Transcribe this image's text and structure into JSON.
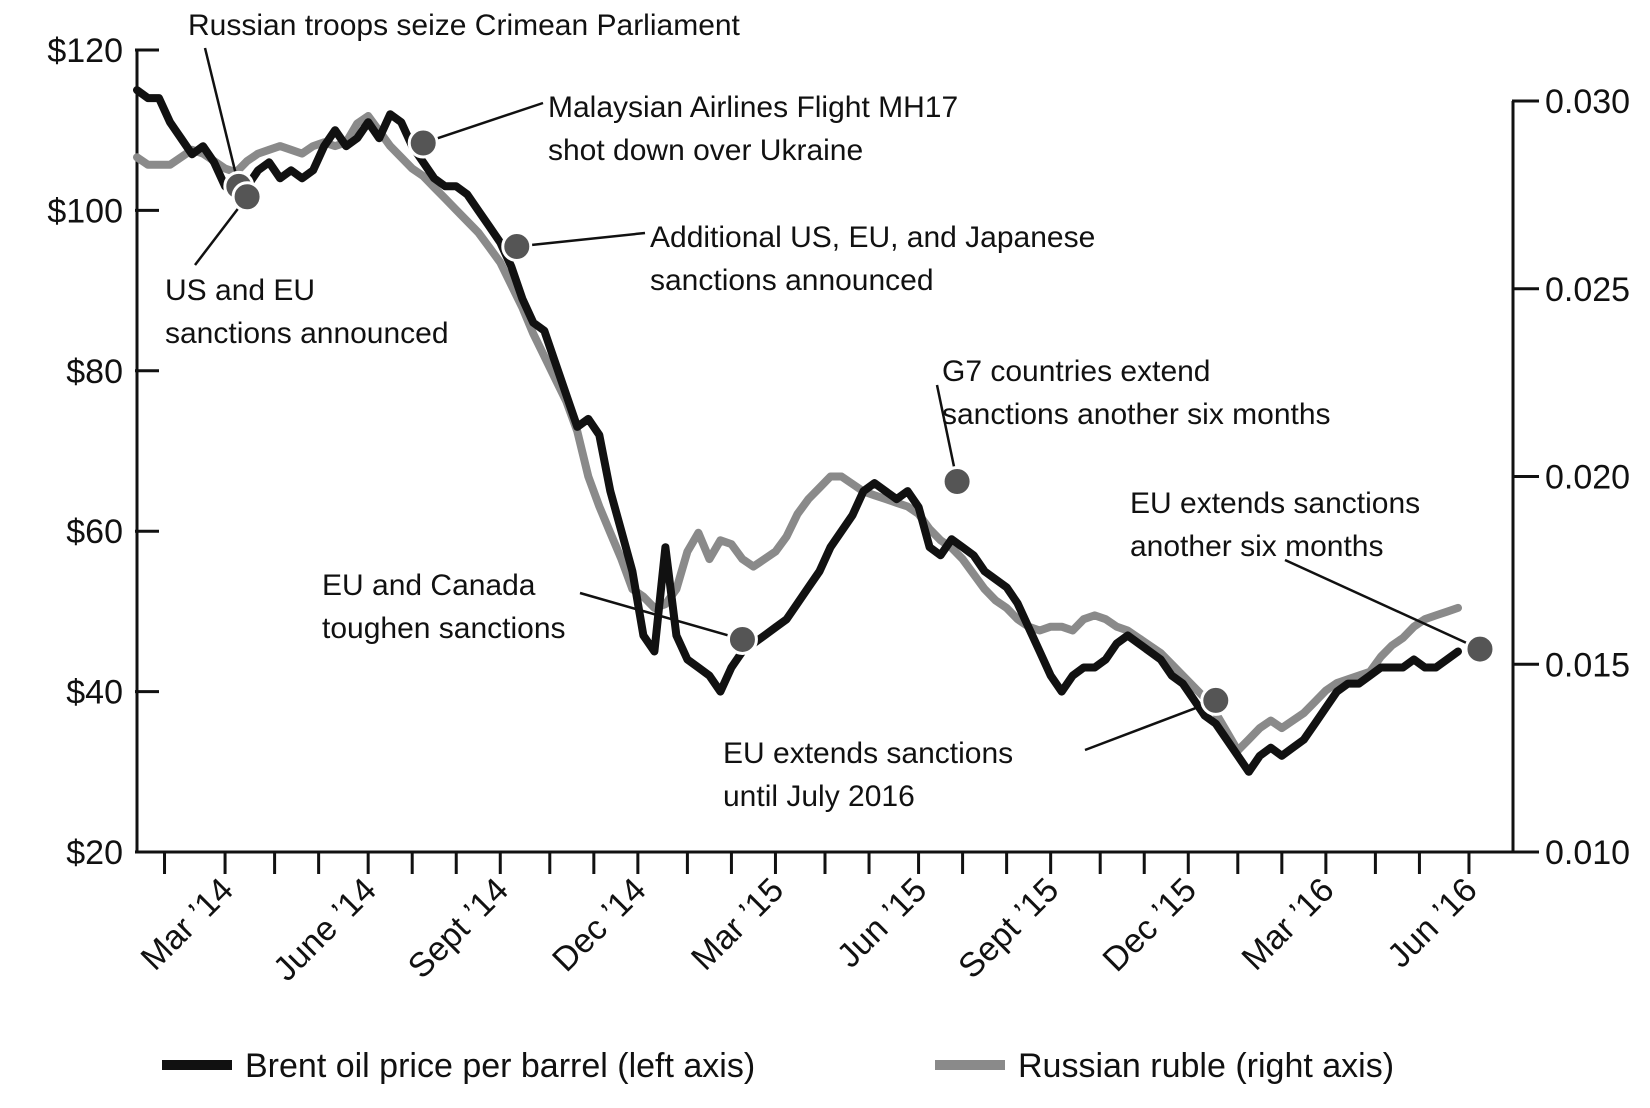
{
  "chart_data": {
    "type": "line",
    "title": "",
    "xlabel": "",
    "ylabel_left": "Brent oil price per barrel",
    "ylabel_right": "Russian ruble",
    "x_range": [
      2014.0,
      2016.5
    ],
    "ylim_left": [
      20,
      120
    ],
    "ylim_right": [
      0.01,
      0.031
    ],
    "left_ticks": [
      {
        "value": 120,
        "label": "$120"
      },
      {
        "value": 100,
        "label": "$100"
      },
      {
        "value": 80,
        "label": "$80"
      },
      {
        "value": 60,
        "label": "$60"
      },
      {
        "value": 40,
        "label": "$40"
      },
      {
        "value": 20,
        "label": "$20"
      }
    ],
    "right_ticks": [
      {
        "value": 0.03,
        "label": "0.030"
      },
      {
        "value": 0.025,
        "label": "0.025"
      },
      {
        "value": 0.02,
        "label": "0.020"
      },
      {
        "value": 0.015,
        "label": "0.015"
      },
      {
        "value": 0.01,
        "label": "0.010"
      }
    ],
    "x_minor_ticks": [
      2014.05,
      2014.16,
      2014.25,
      2014.33,
      2014.42,
      2014.5,
      2014.58,
      2014.66,
      2014.75,
      2014.83,
      2014.91,
      2015.0,
      2015.08,
      2015.16,
      2015.25,
      2015.33,
      2015.42,
      2015.5,
      2015.58,
      2015.66,
      2015.75,
      2015.83,
      2015.91,
      2016.0,
      2016.08,
      2016.16,
      2016.25,
      2016.33,
      2016.42
    ],
    "x_labels": [
      {
        "value": 2014.16,
        "label": "Mar ’14"
      },
      {
        "value": 2014.42,
        "label": "June ’14"
      },
      {
        "value": 2014.66,
        "label": "Sept ’14"
      },
      {
        "value": 2014.91,
        "label": "Dec ’14"
      },
      {
        "value": 2015.16,
        "label": "Mar ’15"
      },
      {
        "value": 2015.42,
        "label": "Jun ’15"
      },
      {
        "value": 2015.66,
        "label": "Sept ’15"
      },
      {
        "value": 2015.91,
        "label": "Dec ’15"
      },
      {
        "value": 2016.16,
        "label": "Mar ’16"
      },
      {
        "value": 2016.42,
        "label": "Jun ’16"
      }
    ],
    "series": [
      {
        "name": "Brent oil price per barrel (left axis)",
        "axis": "left",
        "color": "#111111",
        "x": [
          2014.0,
          2014.02,
          2014.04,
          2014.06,
          2014.08,
          2014.1,
          2014.12,
          2014.14,
          2014.16,
          2014.18,
          2014.2,
          2014.22,
          2014.24,
          2014.26,
          2014.28,
          2014.3,
          2014.32,
          2014.34,
          2014.36,
          2014.38,
          2014.4,
          2014.42,
          2014.44,
          2014.46,
          2014.48,
          2014.5,
          2014.52,
          2014.54,
          2014.56,
          2014.58,
          2014.6,
          2014.62,
          2014.64,
          2014.66,
          2014.68,
          2014.7,
          2014.72,
          2014.74,
          2014.76,
          2014.78,
          2014.8,
          2014.82,
          2014.84,
          2014.86,
          2014.88,
          2014.9,
          2014.92,
          2014.94,
          2014.96,
          2014.98,
          2015.0,
          2015.02,
          2015.04,
          2015.06,
          2015.08,
          2015.1,
          2015.12,
          2015.14,
          2015.16,
          2015.18,
          2015.2,
          2015.22,
          2015.24,
          2015.26,
          2015.28,
          2015.3,
          2015.32,
          2015.34,
          2015.36,
          2015.38,
          2015.4,
          2015.42,
          2015.44,
          2015.46,
          2015.48,
          2015.5,
          2015.52,
          2015.54,
          2015.56,
          2015.58,
          2015.6,
          2015.62,
          2015.64,
          2015.66,
          2015.68,
          2015.7,
          2015.72,
          2015.74,
          2015.76,
          2015.78,
          2015.8,
          2015.82,
          2015.84,
          2015.86,
          2015.88,
          2015.9,
          2015.92,
          2015.94,
          2015.96,
          2015.98,
          2016.0,
          2016.02,
          2016.04,
          2016.06,
          2016.08,
          2016.1,
          2016.12,
          2016.14,
          2016.16,
          2016.18,
          2016.2,
          2016.22,
          2016.24,
          2016.26,
          2016.28,
          2016.3,
          2016.32,
          2016.34,
          2016.36,
          2016.38,
          2016.4
        ],
        "values": [
          115,
          114,
          114,
          111,
          109,
          107,
          108,
          106,
          103,
          102,
          103,
          105,
          106,
          104,
          105,
          104,
          105,
          108,
          110,
          108,
          109,
          111,
          109,
          112,
          111,
          108,
          106,
          104,
          103,
          103,
          102,
          100,
          98,
          96,
          93,
          89,
          86,
          85,
          81,
          77,
          73,
          74,
          72,
          65,
          60,
          55,
          47,
          45,
          58,
          47,
          44,
          43,
          42,
          40,
          43,
          45,
          46,
          47,
          48,
          49,
          51,
          53,
          55,
          58,
          60,
          62,
          65,
          66,
          65,
          64,
          65,
          63,
          58,
          57,
          59,
          58,
          57,
          55,
          54,
          53,
          51,
          48,
          45,
          42,
          40,
          42,
          43,
          43,
          44,
          46,
          47,
          46,
          45,
          44,
          42,
          41,
          39,
          37,
          36,
          34,
          32,
          30,
          32,
          33,
          32,
          33,
          34,
          36,
          38,
          40,
          41,
          41,
          42,
          43,
          43,
          43,
          44,
          43,
          43,
          44,
          45
        ]
      },
      {
        "name": "Russian ruble (right axis)",
        "axis": "right",
        "color": "#8a8a8a",
        "x": [
          2014.0,
          2014.02,
          2014.04,
          2014.06,
          2014.08,
          2014.1,
          2014.12,
          2014.14,
          2014.16,
          2014.18,
          2014.2,
          2014.22,
          2014.24,
          2014.26,
          2014.28,
          2014.3,
          2014.32,
          2014.34,
          2014.36,
          2014.38,
          2014.4,
          2014.42,
          2014.44,
          2014.46,
          2014.48,
          2014.5,
          2014.52,
          2014.54,
          2014.56,
          2014.58,
          2014.6,
          2014.62,
          2014.64,
          2014.66,
          2014.68,
          2014.7,
          2014.72,
          2014.74,
          2014.76,
          2014.78,
          2014.8,
          2014.82,
          2014.84,
          2014.86,
          2014.88,
          2014.9,
          2014.92,
          2014.94,
          2014.96,
          2014.98,
          2015.0,
          2015.02,
          2015.04,
          2015.06,
          2015.08,
          2015.1,
          2015.12,
          2015.14,
          2015.16,
          2015.18,
          2015.2,
          2015.22,
          2015.24,
          2015.26,
          2015.28,
          2015.3,
          2015.32,
          2015.34,
          2015.36,
          2015.38,
          2015.4,
          2015.42,
          2015.44,
          2015.46,
          2015.48,
          2015.5,
          2015.52,
          2015.54,
          2015.56,
          2015.58,
          2015.6,
          2015.62,
          2015.64,
          2015.66,
          2015.68,
          2015.7,
          2015.72,
          2015.74,
          2015.76,
          2015.78,
          2015.8,
          2015.82,
          2015.84,
          2015.86,
          2015.88,
          2015.9,
          2015.92,
          2015.94,
          2015.96,
          2015.98,
          2016.0,
          2016.02,
          2016.04,
          2016.06,
          2016.08,
          2016.1,
          2016.12,
          2016.14,
          2016.16,
          2016.18,
          2016.2,
          2016.22,
          2016.24,
          2016.26,
          2016.28,
          2016.3,
          2016.32,
          2016.34,
          2016.36,
          2016.38,
          2016.4
        ],
        "values": [
          0.0285,
          0.0283,
          0.0283,
          0.0283,
          0.0285,
          0.0287,
          0.0286,
          0.0284,
          0.0282,
          0.0281,
          0.0284,
          0.0286,
          0.0287,
          0.0288,
          0.0287,
          0.0286,
          0.0288,
          0.0289,
          0.0288,
          0.0289,
          0.0294,
          0.0296,
          0.0292,
          0.0288,
          0.0285,
          0.0282,
          0.028,
          0.0277,
          0.0274,
          0.0271,
          0.0268,
          0.0265,
          0.0261,
          0.0257,
          0.0251,
          0.0245,
          0.0238,
          0.0232,
          0.0226,
          0.022,
          0.0212,
          0.02,
          0.0192,
          0.0185,
          0.0178,
          0.017,
          0.0168,
          0.0165,
          0.0166,
          0.017,
          0.018,
          0.0185,
          0.0178,
          0.0183,
          0.0182,
          0.0178,
          0.0176,
          0.0178,
          0.018,
          0.0184,
          0.019,
          0.0194,
          0.0197,
          0.02,
          0.02,
          0.0198,
          0.0196,
          0.0195,
          0.0194,
          0.0193,
          0.0192,
          0.019,
          0.0186,
          0.0183,
          0.0181,
          0.0178,
          0.0174,
          0.017,
          0.0167,
          0.0165,
          0.0162,
          0.016,
          0.0159,
          0.016,
          0.016,
          0.0159,
          0.0162,
          0.0163,
          0.0162,
          0.016,
          0.0159,
          0.0157,
          0.0155,
          0.0153,
          0.015,
          0.0147,
          0.0144,
          0.0141,
          0.0137,
          0.0132,
          0.0127,
          0.013,
          0.0133,
          0.0135,
          0.0133,
          0.0135,
          0.0137,
          0.014,
          0.0143,
          0.0145,
          0.0146,
          0.0147,
          0.0148,
          0.0152,
          0.0155,
          0.0157,
          0.016,
          0.0162,
          0.0163,
          0.0164,
          0.0165
        ]
      }
    ],
    "events": [
      {
        "name": "crimea",
        "x": 2014.185,
        "y_left": 103.0,
        "lines": [
          "Russian troops seize Crimean Parliament"
        ]
      },
      {
        "name": "us-eu",
        "x": 2014.2,
        "y_left": 101.7,
        "lines": [
          "US and EU",
          "sanctions announced"
        ]
      },
      {
        "name": "mh17",
        "x": 2014.52,
        "y_left": 108.4,
        "lines": [
          "Malaysian Airlines Flight MH17",
          "shot down over Ukraine"
        ]
      },
      {
        "name": "additional",
        "x": 2014.69,
        "y_left": 95.5,
        "lines": [
          "Additional US, EU, and Japanese",
          "sanctions announced"
        ]
      },
      {
        "name": "eu-canada",
        "x": 2015.1,
        "y_left": 46.5,
        "lines": [
          "EU and Canada",
          "toughen sanctions"
        ]
      },
      {
        "name": "g7",
        "x": 2015.49,
        "y_left": 66.2,
        "lines": [
          "G7 countries extend",
          "sanctions another six months"
        ]
      },
      {
        "name": "eu-july",
        "x": 2015.96,
        "y_left": 38.9,
        "lines": [
          "EU extends sanctions",
          "until July 2016"
        ]
      },
      {
        "name": "eu-six",
        "x": 2016.44,
        "y_left": 45.3,
        "lines": [
          "EU extends sanctions",
          "another six months"
        ]
      }
    ],
    "legend": {
      "placement": "bottom",
      "items": [
        {
          "label": "Brent oil price per barrel (left axis)",
          "color": "#111111"
        },
        {
          "label": "Russian ruble (right axis)",
          "color": "#8a8a8a"
        }
      ]
    }
  }
}
